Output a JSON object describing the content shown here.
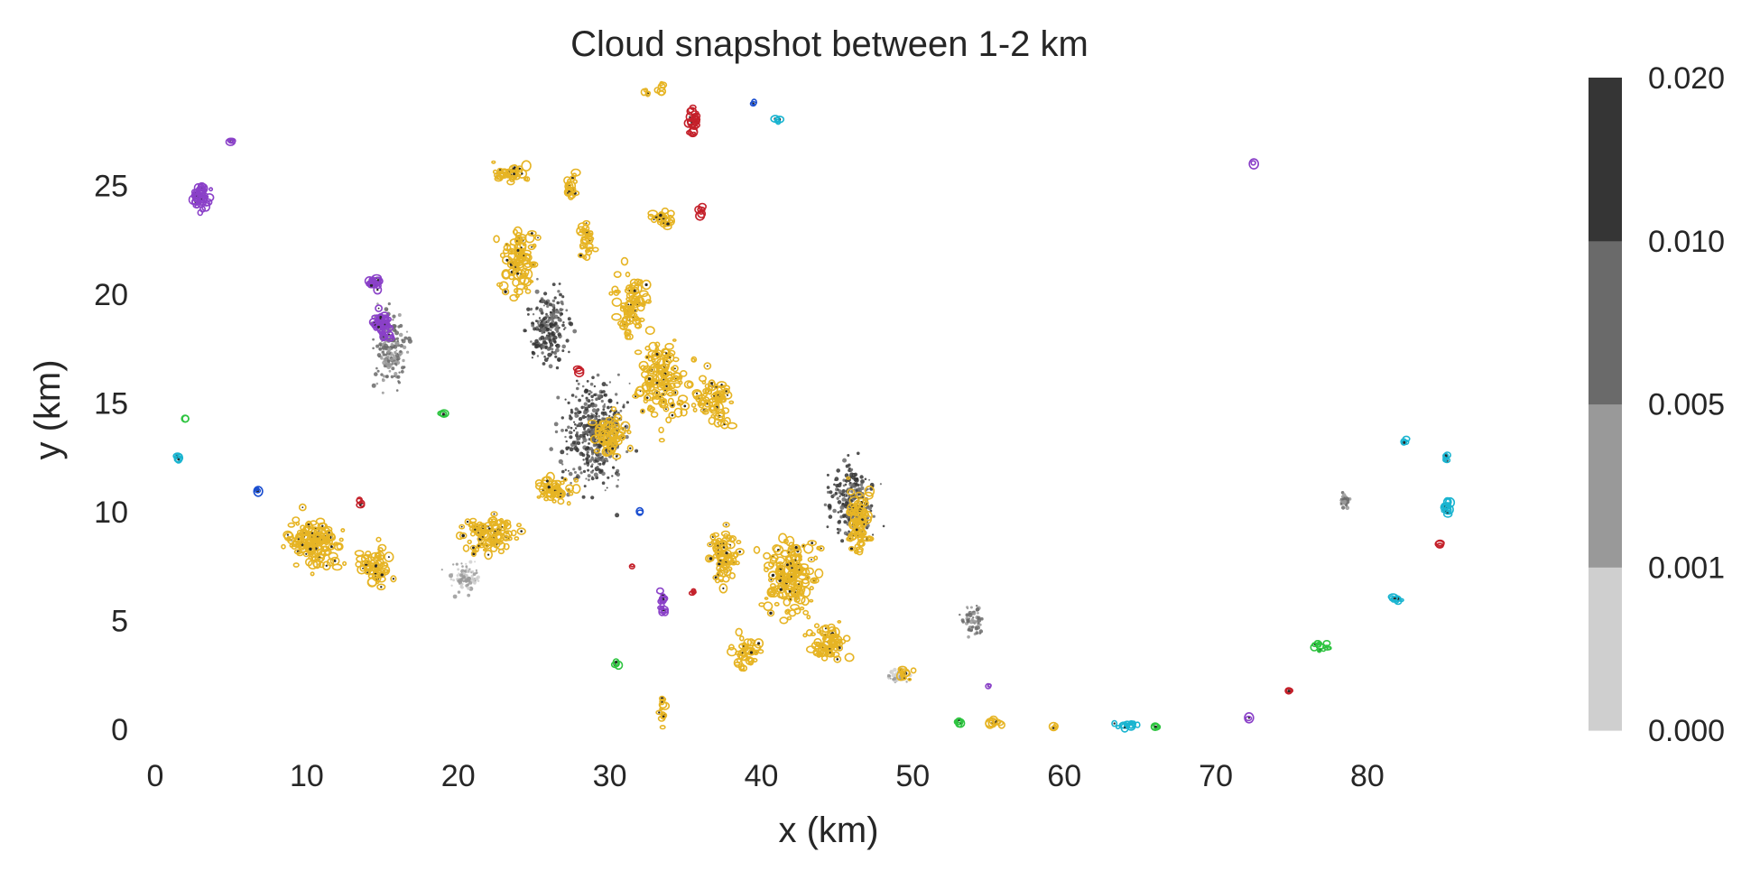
{
  "chart_data": {
    "type": "scatter",
    "title": "Cloud snapshot between 1-2 km",
    "xlabel": "x (km)",
    "ylabel": "y (km)",
    "xlim": [
      0,
      89
    ],
    "ylim": [
      0,
      30
    ],
    "xticks": [
      0,
      10,
      20,
      30,
      40,
      50,
      60,
      70,
      80
    ],
    "yticks": [
      0,
      5,
      10,
      15,
      20,
      25
    ],
    "grid": false,
    "colorbar": {
      "ticks": [
        "0.000",
        "0.001",
        "0.005",
        "0.010",
        "0.020"
      ],
      "colors": [
        "#cfcfcf",
        "#999999",
        "#6a6a6a",
        "#353535"
      ]
    },
    "cloud_colors": {
      "gold": "#e6b424",
      "purple": "#8a40c8",
      "red": "#c4202a",
      "cyan": "#1ab4d0",
      "green": "#2ec440",
      "blue": "#1a4ed0"
    },
    "background_shading": [
      {
        "level": 3,
        "x": [
          26,
          32
        ],
        "y": [
          10,
          17
        ]
      },
      {
        "level": 3,
        "x": [
          44,
          48
        ],
        "y": [
          8,
          13
        ]
      },
      {
        "level": 3,
        "x": [
          24,
          28
        ],
        "y": [
          16,
          21
        ]
      },
      {
        "level": 2,
        "x": [
          14,
          17
        ],
        "y": [
          15,
          20
        ]
      },
      {
        "level": 2,
        "x": [
          78,
          79
        ],
        "y": [
          10,
          11
        ]
      },
      {
        "level": 2,
        "x": [
          53,
          55
        ],
        "y": [
          4,
          6
        ]
      },
      {
        "level": 1,
        "x": [
          19,
          22
        ],
        "y": [
          6,
          8
        ]
      },
      {
        "level": 1,
        "x": [
          48,
          50
        ],
        "y": [
          2,
          3
        ]
      }
    ],
    "clouds": [
      {
        "color": "gold",
        "center": [
          10.5,
          8.5
        ],
        "spread": [
          2.8,
          2.0
        ],
        "size": 130
      },
      {
        "color": "gold",
        "center": [
          14.5,
          7.5
        ],
        "spread": [
          1.8,
          1.5
        ],
        "size": 60
      },
      {
        "color": "gold",
        "center": [
          22.0,
          9.0
        ],
        "spread": [
          3.0,
          1.6
        ],
        "size": 90
      },
      {
        "color": "gold",
        "center": [
          26.5,
          11.0
        ],
        "spread": [
          2.0,
          1.0
        ],
        "size": 50
      },
      {
        "color": "gold",
        "center": [
          24.0,
          21.5
        ],
        "spread": [
          1.8,
          2.5
        ],
        "size": 90
      },
      {
        "color": "gold",
        "center": [
          23.5,
          25.5
        ],
        "spread": [
          2.0,
          0.7
        ],
        "size": 35
      },
      {
        "color": "gold",
        "center": [
          27.5,
          25.0
        ],
        "spread": [
          0.6,
          1.2
        ],
        "size": 20
      },
      {
        "color": "gold",
        "center": [
          28.5,
          22.5
        ],
        "spread": [
          1.0,
          1.5
        ],
        "size": 30
      },
      {
        "color": "gold",
        "center": [
          31.5,
          19.5
        ],
        "spread": [
          2.2,
          2.5
        ],
        "size": 80
      },
      {
        "color": "gold",
        "center": [
          33.5,
          16.0
        ],
        "spread": [
          3.0,
          3.0
        ],
        "size": 140
      },
      {
        "color": "gold",
        "center": [
          37.0,
          15.0
        ],
        "spread": [
          2.0,
          2.0
        ],
        "size": 70
      },
      {
        "color": "gold",
        "center": [
          30.0,
          13.5
        ],
        "spread": [
          2.0,
          1.5
        ],
        "size": 60
      },
      {
        "color": "gold",
        "center": [
          33.5,
          23.5
        ],
        "spread": [
          1.3,
          1.0
        ],
        "size": 25
      },
      {
        "color": "gold",
        "center": [
          33.0,
          29.5
        ],
        "spread": [
          1.5,
          0.5
        ],
        "size": 10
      },
      {
        "color": "gold",
        "center": [
          37.5,
          8.0
        ],
        "spread": [
          1.5,
          2.5
        ],
        "size": 70
      },
      {
        "color": "gold",
        "center": [
          42.0,
          7.0
        ],
        "spread": [
          2.8,
          3.0
        ],
        "size": 160
      },
      {
        "color": "gold",
        "center": [
          46.5,
          9.5
        ],
        "spread": [
          1.3,
          2.5
        ],
        "size": 80
      },
      {
        "color": "gold",
        "center": [
          39.0,
          3.5
        ],
        "spread": [
          2.0,
          1.2
        ],
        "size": 40
      },
      {
        "color": "gold",
        "center": [
          44.5,
          4.0
        ],
        "spread": [
          2.5,
          1.5
        ],
        "size": 70
      },
      {
        "color": "gold",
        "center": [
          49.5,
          2.5
        ],
        "spread": [
          0.8,
          0.6
        ],
        "size": 12
      },
      {
        "color": "gold",
        "center": [
          33.5,
          1.0
        ],
        "spread": [
          0.4,
          1.0
        ],
        "size": 12
      },
      {
        "color": "gold",
        "center": [
          55.5,
          0.3
        ],
        "spread": [
          0.8,
          0.2
        ],
        "size": 8
      },
      {
        "color": "gold",
        "center": [
          59.5,
          0.1
        ],
        "spread": [
          0.5,
          0.1
        ],
        "size": 4
      },
      {
        "color": "purple",
        "center": [
          3.0,
          24.5
        ],
        "spread": [
          1.0,
          1.0
        ],
        "size": 45
      },
      {
        "color": "purple",
        "center": [
          15.0,
          18.5
        ],
        "spread": [
          0.9,
          1.0
        ],
        "size": 50
      },
      {
        "color": "purple",
        "center": [
          14.5,
          20.5
        ],
        "spread": [
          0.6,
          0.6
        ],
        "size": 20
      },
      {
        "color": "purple",
        "center": [
          33.5,
          5.8
        ],
        "spread": [
          0.4,
          1.0
        ],
        "size": 14
      },
      {
        "color": "purple",
        "center": [
          5.0,
          27.0
        ],
        "spread": [
          0.3,
          0.4
        ],
        "size": 4
      },
      {
        "color": "purple",
        "center": [
          72.5,
          26.0
        ],
        "spread": [
          0.1,
          0.1
        ],
        "size": 2
      },
      {
        "color": "purple",
        "center": [
          72.2,
          0.5
        ],
        "spread": [
          0.1,
          0.1
        ],
        "size": 2
      },
      {
        "color": "purple",
        "center": [
          55.0,
          2.0
        ],
        "spread": [
          0.1,
          0.1
        ],
        "size": 2
      },
      {
        "color": "red",
        "center": [
          35.5,
          28.0
        ],
        "spread": [
          0.6,
          1.2
        ],
        "size": 25
      },
      {
        "color": "red",
        "center": [
          36.0,
          23.8
        ],
        "spread": [
          0.4,
          0.4
        ],
        "size": 6
      },
      {
        "color": "red",
        "center": [
          13.5,
          10.5
        ],
        "spread": [
          0.2,
          0.3
        ],
        "size": 4
      },
      {
        "color": "red",
        "center": [
          28.0,
          16.5
        ],
        "spread": [
          0.2,
          0.2
        ],
        "size": 3
      },
      {
        "color": "red",
        "center": [
          35.5,
          6.2
        ],
        "spread": [
          0.2,
          0.2
        ],
        "size": 3
      },
      {
        "color": "red",
        "center": [
          84.8,
          8.5
        ],
        "spread": [
          0.1,
          0.2
        ],
        "size": 3
      },
      {
        "color": "red",
        "center": [
          74.8,
          1.8
        ],
        "spread": [
          0.3,
          0.1
        ],
        "size": 4
      },
      {
        "color": "red",
        "center": [
          31.5,
          7.5
        ],
        "spread": [
          0.1,
          0.1
        ],
        "size": 2
      },
      {
        "color": "cyan",
        "center": [
          85.2,
          10.2
        ],
        "spread": [
          0.5,
          0.8
        ],
        "size": 16
      },
      {
        "color": "cyan",
        "center": [
          82.0,
          6.0
        ],
        "spread": [
          0.6,
          0.4
        ],
        "size": 10
      },
      {
        "color": "cyan",
        "center": [
          85.2,
          12.5
        ],
        "spread": [
          0.2,
          0.5
        ],
        "size": 6
      },
      {
        "color": "cyan",
        "center": [
          82.5,
          13.3
        ],
        "spread": [
          0.2,
          0.2
        ],
        "size": 4
      },
      {
        "color": "cyan",
        "center": [
          64.0,
          0.2
        ],
        "spread": [
          1.5,
          0.2
        ],
        "size": 14
      },
      {
        "color": "cyan",
        "center": [
          1.5,
          12.5
        ],
        "spread": [
          0.2,
          0.3
        ],
        "size": 5
      },
      {
        "color": "cyan",
        "center": [
          41.0,
          28.0
        ],
        "spread": [
          0.3,
          0.6
        ],
        "size": 4
      },
      {
        "color": "green",
        "center": [
          77.0,
          3.8
        ],
        "spread": [
          0.8,
          0.5
        ],
        "size": 14
      },
      {
        "color": "green",
        "center": [
          53.0,
          0.3
        ],
        "spread": [
          0.4,
          0.2
        ],
        "size": 5
      },
      {
        "color": "green",
        "center": [
          30.5,
          3.0
        ],
        "spread": [
          0.3,
          0.5
        ],
        "size": 4
      },
      {
        "color": "green",
        "center": [
          19.0,
          14.5
        ],
        "spread": [
          0.2,
          0.1
        ],
        "size": 3
      },
      {
        "color": "green",
        "center": [
          2.0,
          14.3
        ],
        "spread": [
          0.2,
          0.1
        ],
        "size": 2
      },
      {
        "color": "green",
        "center": [
          66.0,
          0.1
        ],
        "spread": [
          0.3,
          0.1
        ],
        "size": 3
      },
      {
        "color": "blue",
        "center": [
          6.8,
          11.0
        ],
        "spread": [
          0.2,
          0.2
        ],
        "size": 3
      },
      {
        "color": "blue",
        "center": [
          32.0,
          10.0
        ],
        "spread": [
          0.1,
          0.1
        ],
        "size": 2
      },
      {
        "color": "blue",
        "center": [
          39.5,
          28.8
        ],
        "spread": [
          0.1,
          0.1
        ],
        "size": 2
      }
    ]
  }
}
